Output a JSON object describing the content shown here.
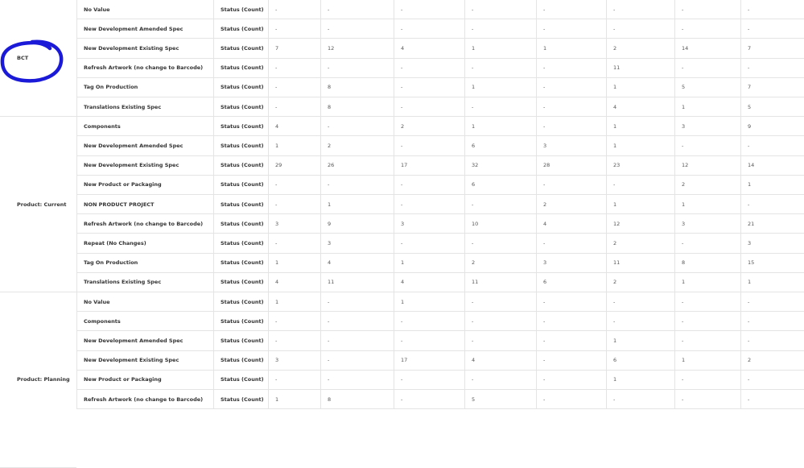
{
  "metric_label": "Status (Count)",
  "annotation_color": "#1a1ad8",
  "groups": [
    {
      "label": "BCT",
      "rows": [
        {
          "type": "No Value",
          "values": [
            "-",
            "-",
            "-",
            "-",
            "-",
            "-",
            "-",
            "-"
          ]
        },
        {
          "type": "New Development Amended Spec",
          "values": [
            "-",
            "-",
            "-",
            "-",
            "-",
            "-",
            "-",
            "-"
          ]
        },
        {
          "type": "New Development Existing Spec",
          "values": [
            "7",
            "12",
            "4",
            "1",
            "1",
            "2",
            "14",
            "7"
          ]
        },
        {
          "type": "Refresh Artwork (no change to Barcode)",
          "values": [
            "-",
            "-",
            "-",
            "-",
            "-",
            "11",
            "-",
            "-"
          ]
        },
        {
          "type": "Tag On Production",
          "values": [
            "-",
            "8",
            "-",
            "1",
            "-",
            "1",
            "5",
            "7"
          ]
        },
        {
          "type": "Translations Existing Spec",
          "values": [
            "-",
            "8",
            "-",
            "-",
            "-",
            "4",
            "1",
            "5"
          ]
        }
      ]
    },
    {
      "label": "Product: Current",
      "rows": [
        {
          "type": "Components",
          "values": [
            "4",
            "-",
            "2",
            "1",
            "-",
            "1",
            "3",
            "9"
          ]
        },
        {
          "type": "New Development Amended Spec",
          "values": [
            "1",
            "2",
            "-",
            "6",
            "3",
            "1",
            "-",
            "-"
          ]
        },
        {
          "type": "New Development Existing Spec",
          "values": [
            "29",
            "26",
            "17",
            "32",
            "28",
            "23",
            "12",
            "14"
          ]
        },
        {
          "type": "New Product or Packaging",
          "values": [
            "-",
            "-",
            "-",
            "6",
            "-",
            "-",
            "2",
            "1"
          ]
        },
        {
          "type": "NON PRODUCT PROJECT",
          "values": [
            "-",
            "1",
            "-",
            "-",
            "2",
            "1",
            "1",
            "-"
          ]
        },
        {
          "type": "Refresh Artwork (no change to Barcode)",
          "values": [
            "3",
            "9",
            "3",
            "10",
            "4",
            "12",
            "3",
            "21"
          ]
        },
        {
          "type": "Repeat (No Changes)",
          "values": [
            "-",
            "3",
            "-",
            "-",
            "-",
            "2",
            "-",
            "3"
          ]
        },
        {
          "type": "Tag On Production",
          "values": [
            "1",
            "4",
            "1",
            "2",
            "3",
            "11",
            "8",
            "15"
          ]
        },
        {
          "type": "Translations Existing Spec",
          "values": [
            "4",
            "11",
            "4",
            "11",
            "6",
            "2",
            "1",
            "1"
          ]
        }
      ]
    },
    {
      "label": "Product: Planning",
      "rows": [
        {
          "type": "No Value",
          "values": [
            "1",
            "-",
            "1",
            "-",
            "-",
            "-",
            "-",
            "-"
          ]
        },
        {
          "type": "Components",
          "values": [
            "-",
            "-",
            "-",
            "-",
            "-",
            "-",
            "-",
            "-"
          ]
        },
        {
          "type": "New Development Amended Spec",
          "values": [
            "-",
            "-",
            "-",
            "-",
            "-",
            "1",
            "-",
            "-"
          ]
        },
        {
          "type": "New Development Existing Spec",
          "values": [
            "3",
            "-",
            "17",
            "4",
            "-",
            "6",
            "1",
            "2"
          ]
        },
        {
          "type": "New Product or Packaging",
          "values": [
            "-",
            "-",
            "-",
            "-",
            "-",
            "1",
            "-",
            "-"
          ]
        },
        {
          "type": "Refresh Artwork (no change to Barcode)",
          "values": [
            "1",
            "8",
            "-",
            "5",
            "-",
            "-",
            "-",
            "-"
          ]
        }
      ]
    }
  ]
}
